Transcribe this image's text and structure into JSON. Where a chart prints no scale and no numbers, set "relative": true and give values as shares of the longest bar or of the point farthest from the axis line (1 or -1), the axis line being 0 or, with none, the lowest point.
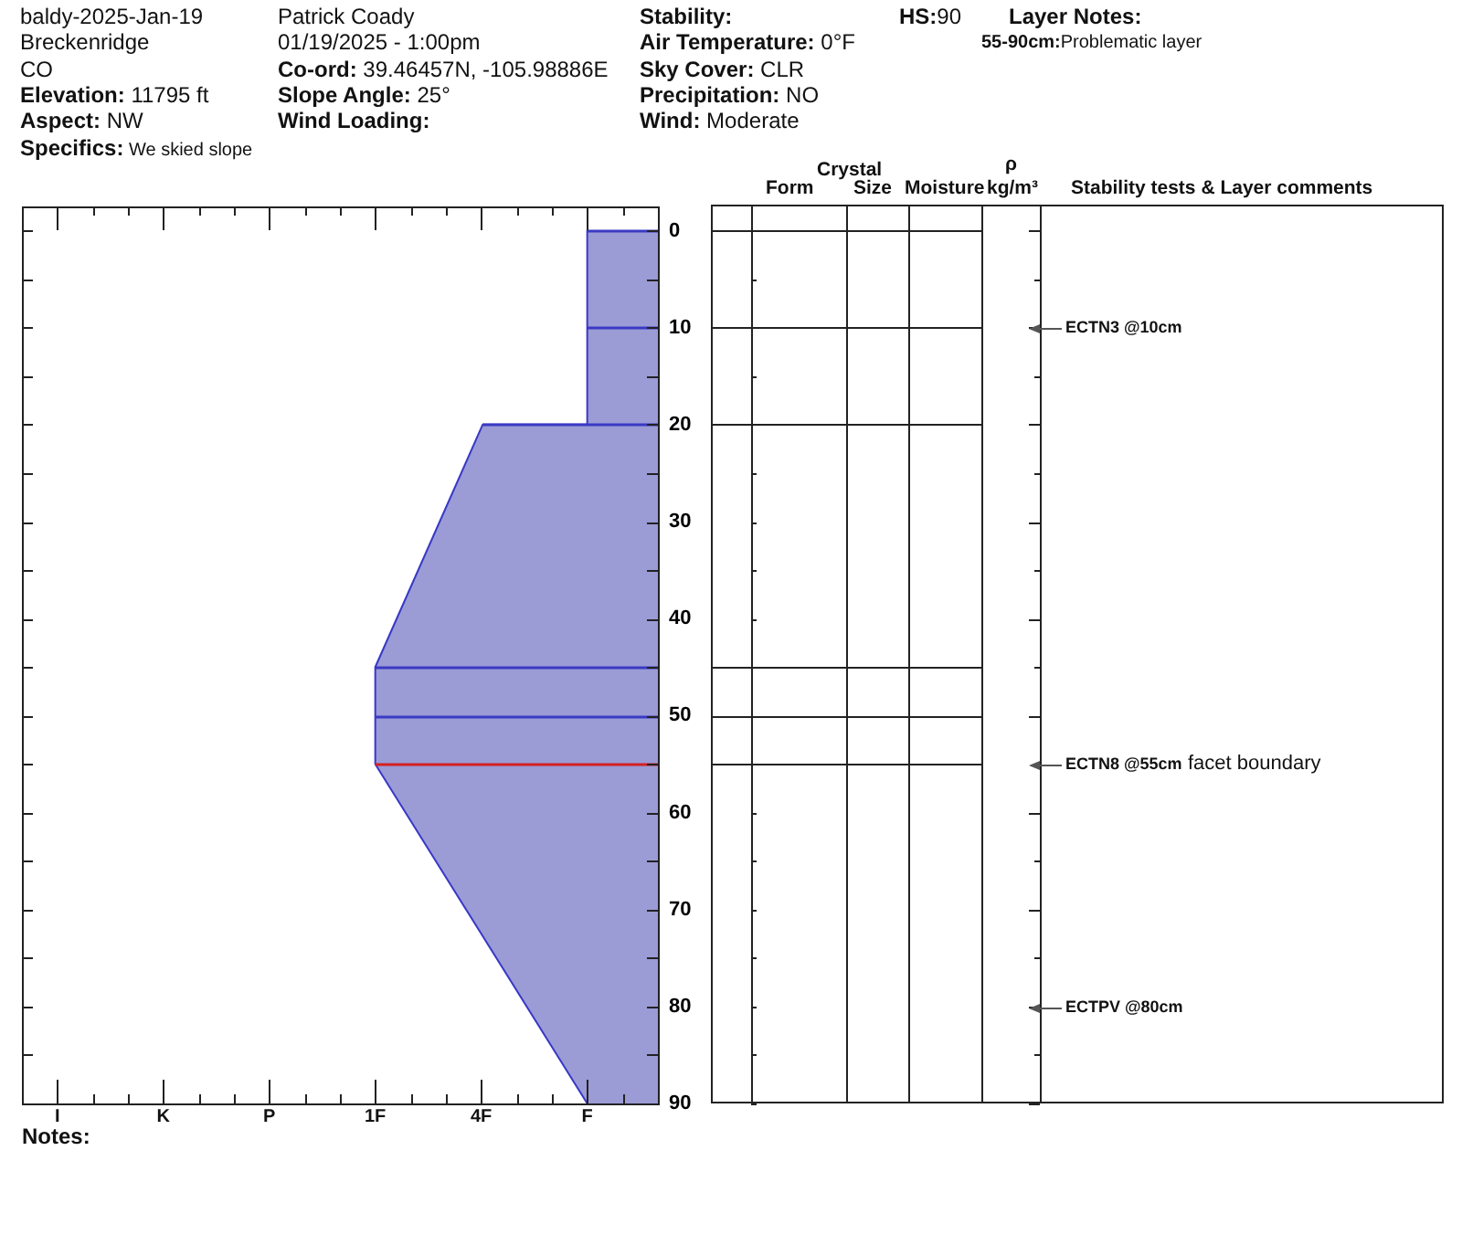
{
  "chart_data": {
    "type": "area",
    "orientation": "horizontal",
    "relative": true,
    "x": [
      0,
      20,
      20,
      45,
      55,
      90
    ],
    "values": [
      -0.25,
      -0.25,
      -0.62,
      -1,
      -1,
      -0.25
    ],
    "color": "#9b9bd6",
    "ylim": [
      90,
      -2.5
    ],
    "yticks": [
      0,
      {
        "value": 5,
        "label": null
      },
      10,
      {
        "value": 15,
        "label": null
      },
      20,
      {
        "value": 25,
        "label": null
      },
      30,
      {
        "value": 35,
        "label": null
      },
      40,
      {
        "value": 45,
        "label": null
      },
      50,
      {
        "value": 55,
        "label": null
      },
      60,
      {
        "value": 65,
        "label": null
      },
      70,
      {
        "value": 75,
        "label": null
      },
      80,
      {
        "value": 85,
        "label": null
      },
      90
    ],
    "ref_lines": [
      {
        "axis": "y",
        "value": 0,
        "color": "#3a3ac4"
      },
      {
        "axis": "y",
        "value": 10,
        "color": "#3a3ac4"
      },
      {
        "axis": "y",
        "value": 20,
        "color": "#3a3ac4"
      },
      {
        "axis": "y",
        "value": 45,
        "color": "#3a3ac4"
      },
      {
        "axis": "y",
        "value": 50,
        "color": "#3a3ac4"
      },
      {
        "axis": "y",
        "value": 55,
        "color": "#d42020"
      }
    ],
    "annotations": [
      "baldy-2025-Jan-19",
      "Patrick Coady",
      "Stability:",
      "HS:90",
      "Layer Notes:",
      "Breckenridge",
      "01/19/2025 - 1:00pm",
      "Air Temperature: 0°F",
      "55-90cm:Problematic layer",
      "CO",
      "Co-ord: 39.46457N, -105.98886E",
      "Sky Cover: CLR",
      "Elevation: 11795 ft",
      "Slope Angle: 25°",
      "Precipitation: NO",
      "Aspect: NW",
      "Wind Loading:",
      "Wind: Moderate",
      "Specifics: We skied slope",
      "Crystal",
      "Form",
      "Size",
      "Moisture",
      "ρ",
      "kg/m³",
      "Stability tests & Layer comments",
      "ECTN3 @10cm",
      "ECTN8 @55cm",
      "facet boundary",
      "ECTPV @80cm",
      "I",
      "K",
      "P",
      "1F",
      "4F",
      "F",
      "Notes:"
    ]
  }
}
